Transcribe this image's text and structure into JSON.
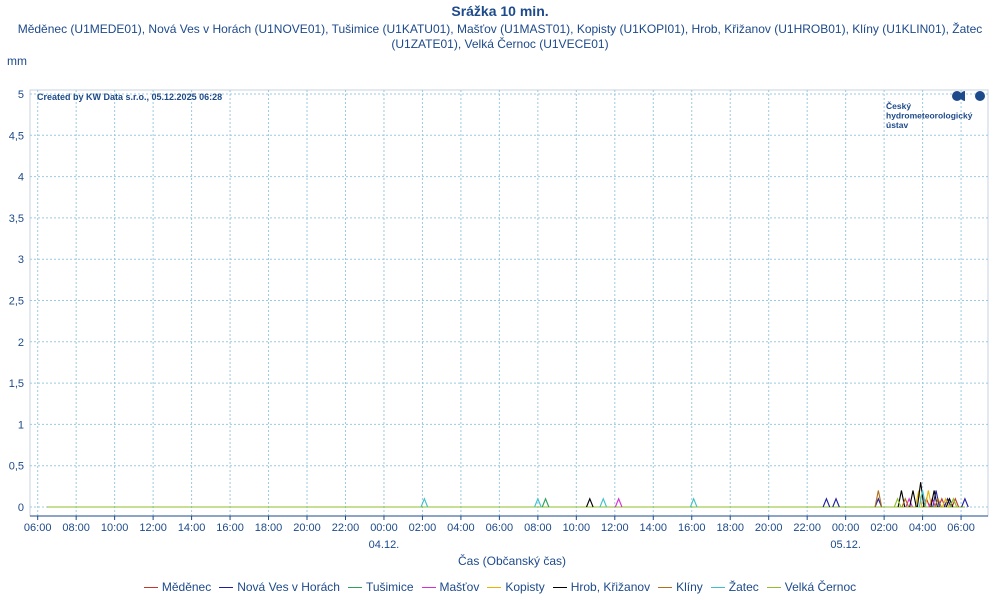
{
  "chart_data": {
    "type": "line",
    "title": "Srážka 10 min.",
    "subtitle": "Měděnec (U1MEDE01), Nová Ves v Horách (U1NOVE01), Tušimice (U1KATU01), Mašťov (U1MAST01), Kopisty (U1KOPI01), Hrob, Křižanov (U1HROB01), Klíny (U1KLIN01), Žatec (U1ZATE01), Velká Černoc (U1VECE01)",
    "ylabel": "mm",
    "xlabel": "Čas (Občanský čas)",
    "credit": "Created by KW Data s.r.o., 05.12.2025 06:28",
    "logo_lines": [
      "Český",
      "hydrometeorologický",
      "ústav"
    ],
    "ylim": [
      0,
      5
    ],
    "y_ticks": [
      "0",
      "0,5",
      "1",
      "1,5",
      "2",
      "2,5",
      "3",
      "3,5",
      "4",
      "4,5",
      "5"
    ],
    "x_range_hours": [
      -0.4,
      49.4
    ],
    "x_ticks": [
      {
        "h": 0,
        "label": "06:00"
      },
      {
        "h": 2,
        "label": "08:00"
      },
      {
        "h": 4,
        "label": "10:00"
      },
      {
        "h": 6,
        "label": "12:00"
      },
      {
        "h": 8,
        "label": "14:00"
      },
      {
        "h": 10,
        "label": "16:00"
      },
      {
        "h": 12,
        "label": "18:00"
      },
      {
        "h": 14,
        "label": "20:00"
      },
      {
        "h": 16,
        "label": "22:00"
      },
      {
        "h": 18,
        "label": "00:00"
      },
      {
        "h": 20,
        "label": "02:00"
      },
      {
        "h": 22,
        "label": "04:00"
      },
      {
        "h": 24,
        "label": "06:00"
      },
      {
        "h": 26,
        "label": "08:00"
      },
      {
        "h": 28,
        "label": "10:00"
      },
      {
        "h": 30,
        "label": "12:00"
      },
      {
        "h": 32,
        "label": "14:00"
      },
      {
        "h": 34,
        "label": "16:00"
      },
      {
        "h": 36,
        "label": "18:00"
      },
      {
        "h": 38,
        "label": "20:00"
      },
      {
        "h": 40,
        "label": "22:00"
      },
      {
        "h": 42,
        "label": "00:00"
      },
      {
        "h": 44,
        "label": "02:00"
      },
      {
        "h": 46,
        "label": "04:00"
      },
      {
        "h": 48,
        "label": "06:00"
      }
    ],
    "date_labels": [
      {
        "h": 18,
        "label": "04.12."
      },
      {
        "h": 42,
        "label": "05.12."
      }
    ],
    "legend_position": "bottom",
    "grid": true,
    "series": [
      {
        "name": "Měděnec",
        "color": "#c0392b",
        "spikes": [
          [
            46.2,
            0.1
          ],
          [
            47.0,
            0.1
          ],
          [
            47.7,
            0.1
          ]
        ]
      },
      {
        "name": "Nová Ves v Horách",
        "color": "#1f1f9e",
        "spikes": [
          [
            41.0,
            0.1
          ],
          [
            41.5,
            0.1
          ],
          [
            43.7,
            0.1
          ],
          [
            46.7,
            0.2
          ],
          [
            47.3,
            0.1
          ],
          [
            48.2,
            0.1
          ]
        ]
      },
      {
        "name": "Tušimice",
        "color": "#2ca05a",
        "spikes": [
          [
            26.4,
            0.1
          ]
        ]
      },
      {
        "name": "Mašťov",
        "color": "#d62fd6",
        "spikes": [
          [
            30.2,
            0.1
          ],
          [
            45.3,
            0.1
          ],
          [
            46.5,
            0.1
          ]
        ]
      },
      {
        "name": "Kopisty",
        "color": "#e8b400",
        "spikes": [
          [
            45.8,
            0.2
          ],
          [
            46.3,
            0.2
          ],
          [
            47.2,
            0.1
          ]
        ]
      },
      {
        "name": "Hrob, Křižanov",
        "color": "#000000",
        "spikes": [
          [
            28.7,
            0.1
          ],
          [
            44.9,
            0.2
          ],
          [
            45.5,
            0.2
          ],
          [
            45.9,
            0.3
          ],
          [
            46.6,
            0.2
          ],
          [
            47.4,
            0.1
          ]
        ]
      },
      {
        "name": "Klíny",
        "color": "#b06f1a",
        "spikes": [
          [
            43.7,
            0.2
          ],
          [
            45.1,
            0.1
          ],
          [
            46.8,
            0.1
          ]
        ]
      },
      {
        "name": "Žatec",
        "color": "#3fc0c8",
        "spikes": [
          [
            20.1,
            0.1
          ],
          [
            26.0,
            0.1
          ],
          [
            29.4,
            0.1
          ],
          [
            34.1,
            0.1
          ],
          [
            46.0,
            0.2
          ]
        ]
      },
      {
        "name": "Velká Černoc",
        "color": "#8fbf2a",
        "spikes": [
          [
            44.7,
            0.1
          ],
          [
            47.6,
            0.1
          ]
        ]
      }
    ]
  }
}
